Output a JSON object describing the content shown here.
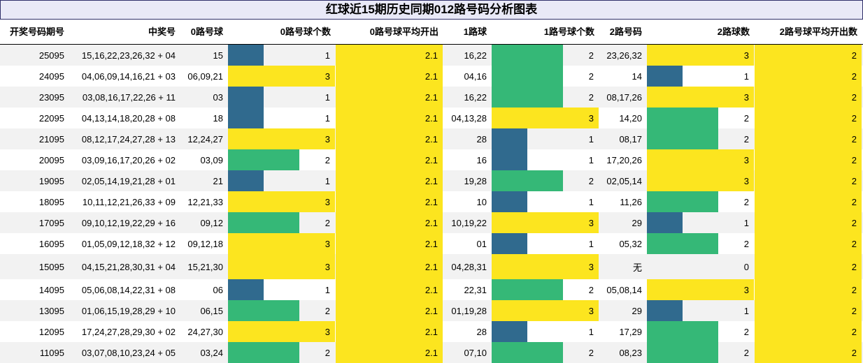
{
  "title": "红球近15期历史同期012路号码分析图表",
  "headers": [
    "开奖号码期号",
    "中奖号",
    "0路号球",
    "0路号球个数",
    "0路号球平均开出",
    "1路球",
    "1路号球个数",
    "2路号码",
    "2路球数",
    "2路号球平均开出数"
  ],
  "colors": {
    "one": "#306a8e",
    "two": "#35b877",
    "three": "#fce51f"
  },
  "rows": [
    {
      "issue": "25095",
      "numbers": "15,16,22,23,26,32 + 04",
      "r0": "15",
      "c0": 1,
      "a0": "2.1",
      "r1": "16,22",
      "c1": 2,
      "r2": "23,26,32",
      "c2": 3,
      "a2": "2"
    },
    {
      "issue": "24095",
      "numbers": "04,06,09,14,16,21 + 03",
      "r0": "06,09,21",
      "c0": 3,
      "a0": "2.1",
      "r1": "04,16",
      "c1": 2,
      "r2": "14",
      "c2": 1,
      "a2": "2"
    },
    {
      "issue": "23095",
      "numbers": "03,08,16,17,22,26 + 11",
      "r0": "03",
      "c0": 1,
      "a0": "2.1",
      "r1": "16,22",
      "c1": 2,
      "r2": "08,17,26",
      "c2": 3,
      "a2": "2"
    },
    {
      "issue": "22095",
      "numbers": "04,13,14,18,20,28 + 08",
      "r0": "18",
      "c0": 1,
      "a0": "2.1",
      "r1": "04,13,28",
      "c1": 3,
      "r2": "14,20",
      "c2": 2,
      "a2": "2"
    },
    {
      "issue": "21095",
      "numbers": "08,12,17,24,27,28 + 13",
      "r0": "12,24,27",
      "c0": 3,
      "a0": "2.1",
      "r1": "28",
      "c1": 1,
      "r2": "08,17",
      "c2": 2,
      "a2": "2"
    },
    {
      "issue": "20095",
      "numbers": "03,09,16,17,20,26 + 02",
      "r0": "03,09",
      "c0": 2,
      "a0": "2.1",
      "r1": "16",
      "c1": 1,
      "r2": "17,20,26",
      "c2": 3,
      "a2": "2"
    },
    {
      "issue": "19095",
      "numbers": "02,05,14,19,21,28 + 01",
      "r0": "21",
      "c0": 1,
      "a0": "2.1",
      "r1": "19,28",
      "c1": 2,
      "r2": "02,05,14",
      "c2": 3,
      "a2": "2"
    },
    {
      "issue": "18095",
      "numbers": "10,11,12,21,26,33 + 09",
      "r0": "12,21,33",
      "c0": 3,
      "a0": "2.1",
      "r1": "10",
      "c1": 1,
      "r2": "11,26",
      "c2": 2,
      "a2": "2"
    },
    {
      "issue": "17095",
      "numbers": "09,10,12,19,22,29 + 16",
      "r0": "09,12",
      "c0": 2,
      "a0": "2.1",
      "r1": "10,19,22",
      "c1": 3,
      "r2": "29",
      "c2": 1,
      "a2": "2"
    },
    {
      "issue": "16095",
      "numbers": "01,05,09,12,18,32 + 12",
      "r0": "09,12,18",
      "c0": 3,
      "a0": "2.1",
      "r1": "01",
      "c1": 1,
      "r2": "05,32",
      "c2": 2,
      "a2": "2"
    },
    {
      "issue": "15095",
      "numbers": "04,15,21,28,30,31 + 04",
      "r0": "15,21,30",
      "c0": 3,
      "a0": "2.1",
      "r1": "04,28,31",
      "c1": 3,
      "r2": "无",
      "c2": 0,
      "a2": "2"
    },
    {
      "issue": "14095",
      "numbers": "05,06,08,14,22,31 + 08",
      "r0": "06",
      "c0": 1,
      "a0": "2.1",
      "r1": "22,31",
      "c1": 2,
      "r2": "05,08,14",
      "c2": 3,
      "a2": "2"
    },
    {
      "issue": "13095",
      "numbers": "01,06,15,19,28,29 + 10",
      "r0": "06,15",
      "c0": 2,
      "a0": "2.1",
      "r1": "01,19,28",
      "c1": 3,
      "r2": "29",
      "c2": 1,
      "a2": "2"
    },
    {
      "issue": "12095",
      "numbers": "17,24,27,28,29,30 + 02",
      "r0": "24,27,30",
      "c0": 3,
      "a0": "2.1",
      "r1": "28",
      "c1": 1,
      "r2": "17,29",
      "c2": 2,
      "a2": "2"
    },
    {
      "issue": "11095",
      "numbers": "03,07,08,10,23,24 + 05",
      "r0": "03,24",
      "c0": 2,
      "a0": "2.1",
      "r1": "07,10",
      "c1": 2,
      "r2": "08,23",
      "c2": 2,
      "a2": "2"
    }
  ]
}
